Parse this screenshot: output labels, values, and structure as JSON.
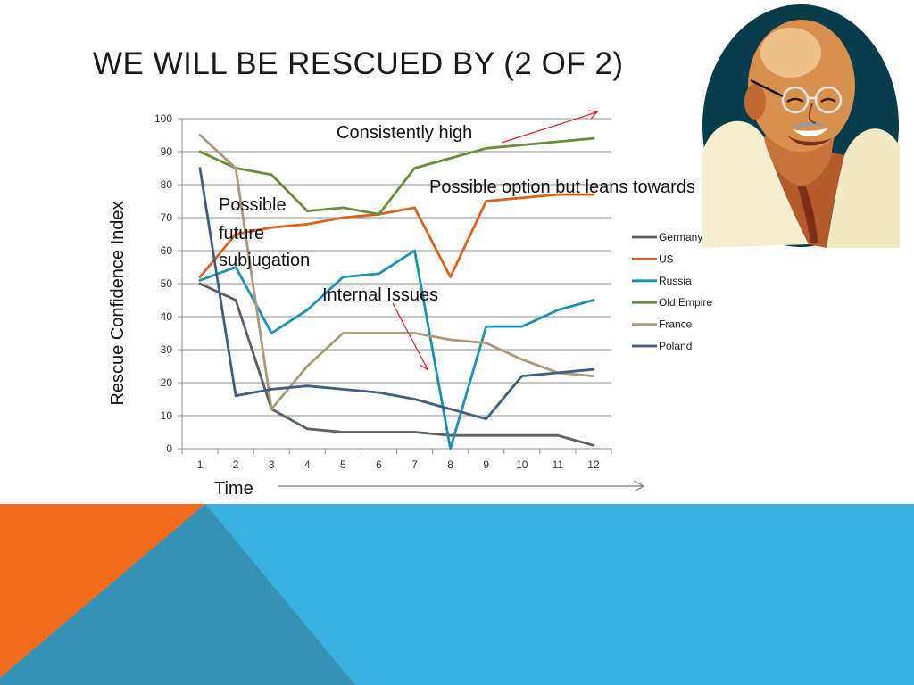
{
  "slide": {
    "title": "WE WILL BE RESCUED BY (2 OF 2)",
    "colors": {
      "orange": "#f26b1d",
      "sky": "#3ab0de",
      "teal": "#3693b5",
      "portrait_bg": "#073d4b"
    }
  },
  "portrait": {
    "name": "gandhi-portrait"
  },
  "chart_data": {
    "type": "line",
    "title": "",
    "xlabel": "Time",
    "ylabel": "Rescue  Confidence Index",
    "ylim": [
      0,
      100
    ],
    "yticks": [
      0,
      10,
      20,
      30,
      40,
      50,
      60,
      70,
      80,
      90,
      100
    ],
    "x": [
      1,
      2,
      3,
      4,
      5,
      6,
      7,
      8,
      9,
      10,
      11,
      12
    ],
    "grid": true,
    "legend": "right",
    "series": [
      {
        "name": "Germany",
        "color": "#5b5f66",
        "values": [
          50,
          45,
          12,
          6,
          5,
          5,
          5,
          4,
          4,
          4,
          4,
          1
        ]
      },
      {
        "name": "US",
        "color": "#d9621f",
        "values": [
          52,
          65,
          67,
          68,
          70,
          71,
          73,
          52,
          75,
          76,
          77,
          77
        ]
      },
      {
        "name": "Russia",
        "color": "#1a91b3",
        "values": [
          51,
          55,
          35,
          42,
          52,
          53,
          60,
          0,
          37,
          37,
          42,
          45
        ]
      },
      {
        "name": "Old Empire",
        "color": "#6a8c3a",
        "values": [
          90,
          85,
          83,
          72,
          73,
          71,
          85,
          88,
          91,
          92,
          93,
          94
        ]
      },
      {
        "name": "France",
        "color": "#a99a7c",
        "values": [
          95,
          85,
          12,
          25,
          35,
          35,
          35,
          33,
          32,
          27,
          23,
          22
        ]
      },
      {
        "name": "Poland",
        "color": "#3f5e82",
        "values": [
          85,
          16,
          18,
          19,
          18,
          17,
          15,
          12,
          9,
          22,
          23,
          24
        ]
      }
    ],
    "annotations": [
      {
        "text": "Consistently high"
      },
      {
        "text": "Possible option but leans towards"
      },
      {
        "lines": [
          "Possible",
          "future",
          "subjugation"
        ]
      },
      {
        "text": "Internal Issues"
      }
    ]
  }
}
